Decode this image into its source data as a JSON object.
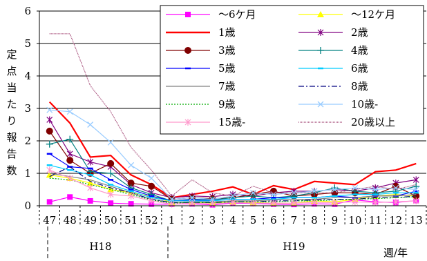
{
  "chart_data": {
    "type": "line",
    "ylabel": "定点当たり報告数",
    "xlabel_unit": "週/年",
    "ylim": [
      0,
      6
    ],
    "yticks": [
      "0",
      "1",
      "2",
      "3",
      "4",
      "5",
      "6"
    ],
    "grid": "horizontal",
    "legend_position": "top-right",
    "categories": [
      "47",
      "48",
      "49",
      "50",
      "51",
      "52",
      "1",
      "2",
      "3",
      "4",
      "5",
      "6",
      "7",
      "8",
      "9",
      "10",
      "11",
      "12",
      "13"
    ],
    "groups": [
      {
        "label": "H18",
        "start": 0,
        "end": 5
      },
      {
        "label": "H19",
        "start": 6,
        "end": 18
      }
    ],
    "series": [
      {
        "name": "〜6ケ月",
        "color": "#ff00ff",
        "marker": "square",
        "dash": "",
        "values": [
          0.12,
          0.27,
          0.15,
          0.08,
          0.06,
          0.05,
          0.05,
          0.06,
          0.03,
          0.08,
          0.07,
          0.05,
          0.04,
          0.06,
          0.05,
          0.18,
          0.12,
          0.1,
          0.16
        ]
      },
      {
        "name": "〜12ケ月",
        "color": "#ffff00",
        "marker": "triangle",
        "dash": "",
        "values": [
          0.95,
          0.85,
          0.7,
          0.5,
          0.4,
          0.3,
          0.1,
          0.12,
          0.08,
          0.12,
          0.1,
          0.08,
          0.08,
          0.15,
          0.12,
          0.2,
          0.3,
          0.35,
          0.3
        ]
      },
      {
        "name": "1歳",
        "color": "#ff0000",
        "marker": "none",
        "dash": "",
        "values": [
          3.2,
          2.55,
          1.5,
          1.55,
          0.95,
          0.65,
          0.25,
          0.35,
          0.45,
          0.58,
          0.35,
          0.62,
          0.5,
          0.75,
          0.7,
          0.65,
          1.05,
          1.1,
          1.3
        ]
      },
      {
        "name": "2歳",
        "color": "#800080",
        "marker": "star",
        "dash": "",
        "values": [
          2.65,
          1.6,
          1.35,
          1.2,
          0.65,
          0.4,
          0.25,
          0.3,
          0.28,
          0.35,
          0.3,
          0.4,
          0.45,
          0.45,
          0.5,
          0.45,
          0.55,
          0.7,
          0.8
        ]
      },
      {
        "name": "3歳",
        "color": "#800000",
        "marker": "circle",
        "dash": "",
        "values": [
          2.3,
          1.4,
          1.0,
          1.3,
          0.7,
          0.6,
          0.2,
          0.25,
          0.22,
          0.25,
          0.35,
          0.45,
          0.3,
          0.35,
          0.4,
          0.4,
          0.35,
          0.6,
          0.3
        ]
      },
      {
        "name": "4歳",
        "color": "#008080",
        "marker": "plus",
        "dash": "",
        "values": [
          1.9,
          2.05,
          1.05,
          1.0,
          0.55,
          0.35,
          0.15,
          0.2,
          0.18,
          0.25,
          0.3,
          0.25,
          0.3,
          0.4,
          0.55,
          0.45,
          0.4,
          0.45,
          0.6
        ]
      },
      {
        "name": "5歳",
        "color": "#0000ff",
        "marker": "dash",
        "dash": "",
        "values": [
          1.6,
          1.2,
          1.15,
          0.8,
          0.5,
          0.3,
          0.15,
          0.18,
          0.16,
          0.2,
          0.2,
          0.25,
          0.25,
          0.25,
          0.3,
          0.25,
          0.3,
          0.3,
          0.45
        ]
      },
      {
        "name": "6歳",
        "color": "#00ccff",
        "marker": "dash",
        "dash": "",
        "values": [
          1.25,
          1.1,
          0.95,
          0.65,
          0.45,
          0.25,
          0.15,
          0.15,
          0.15,
          0.2,
          0.2,
          0.2,
          0.25,
          0.25,
          0.3,
          0.35,
          0.35,
          0.4,
          0.4
        ]
      },
      {
        "name": "7歳",
        "color": "#808080",
        "marker": "none",
        "dash": "",
        "values": [
          1.0,
          0.9,
          0.8,
          0.6,
          0.4,
          0.2,
          0.1,
          0.12,
          0.12,
          0.15,
          0.15,
          0.18,
          0.2,
          0.2,
          0.25,
          0.25,
          0.3,
          0.3,
          0.35
        ]
      },
      {
        "name": "8歳",
        "color": "#000080",
        "marker": "none",
        "dash": "8,3,2,3",
        "values": [
          0.9,
          1.2,
          0.75,
          0.55,
          0.4,
          0.2,
          0.1,
          0.1,
          0.1,
          0.12,
          0.12,
          0.15,
          0.15,
          0.18,
          0.2,
          0.2,
          0.25,
          0.25,
          0.3
        ]
      },
      {
        "name": "9歳",
        "color": "#00aa00",
        "marker": "none",
        "dash": "2,2",
        "values": [
          0.85,
          0.8,
          0.65,
          0.5,
          0.35,
          0.18,
          0.08,
          0.1,
          0.1,
          0.12,
          0.12,
          0.12,
          0.15,
          0.15,
          0.18,
          0.2,
          0.22,
          0.25,
          0.28
        ]
      },
      {
        "name": "10歳-",
        "color": "#99ccff",
        "marker": "x",
        "dash": "",
        "values": [
          2.95,
          2.9,
          2.5,
          1.95,
          1.25,
          0.85,
          0.2,
          0.25,
          0.2,
          0.3,
          0.4,
          0.35,
          0.4,
          0.45,
          0.5,
          0.55,
          0.5,
          0.55,
          0.5
        ]
      },
      {
        "name": "15歳-",
        "color": "#ff99cc",
        "marker": "star",
        "dash": "",
        "values": [
          1.1,
          0.85,
          0.55,
          0.35,
          0.3,
          0.15,
          0.05,
          0.08,
          0.06,
          0.1,
          0.08,
          0.08,
          0.08,
          0.1,
          0.1,
          0.12,
          0.1,
          0.12,
          0.15
        ]
      },
      {
        "name": "20歳以上",
        "color": "#993366",
        "marker": "none",
        "dash": "1,1",
        "values": [
          5.3,
          5.3,
          3.7,
          2.9,
          1.8,
          1.1,
          0.3,
          0.8,
          0.4,
          0.3,
          0.6,
          0.4,
          0.4,
          0.4,
          0.4,
          0.5,
          0.6,
          0.5,
          0.65
        ]
      }
    ]
  }
}
